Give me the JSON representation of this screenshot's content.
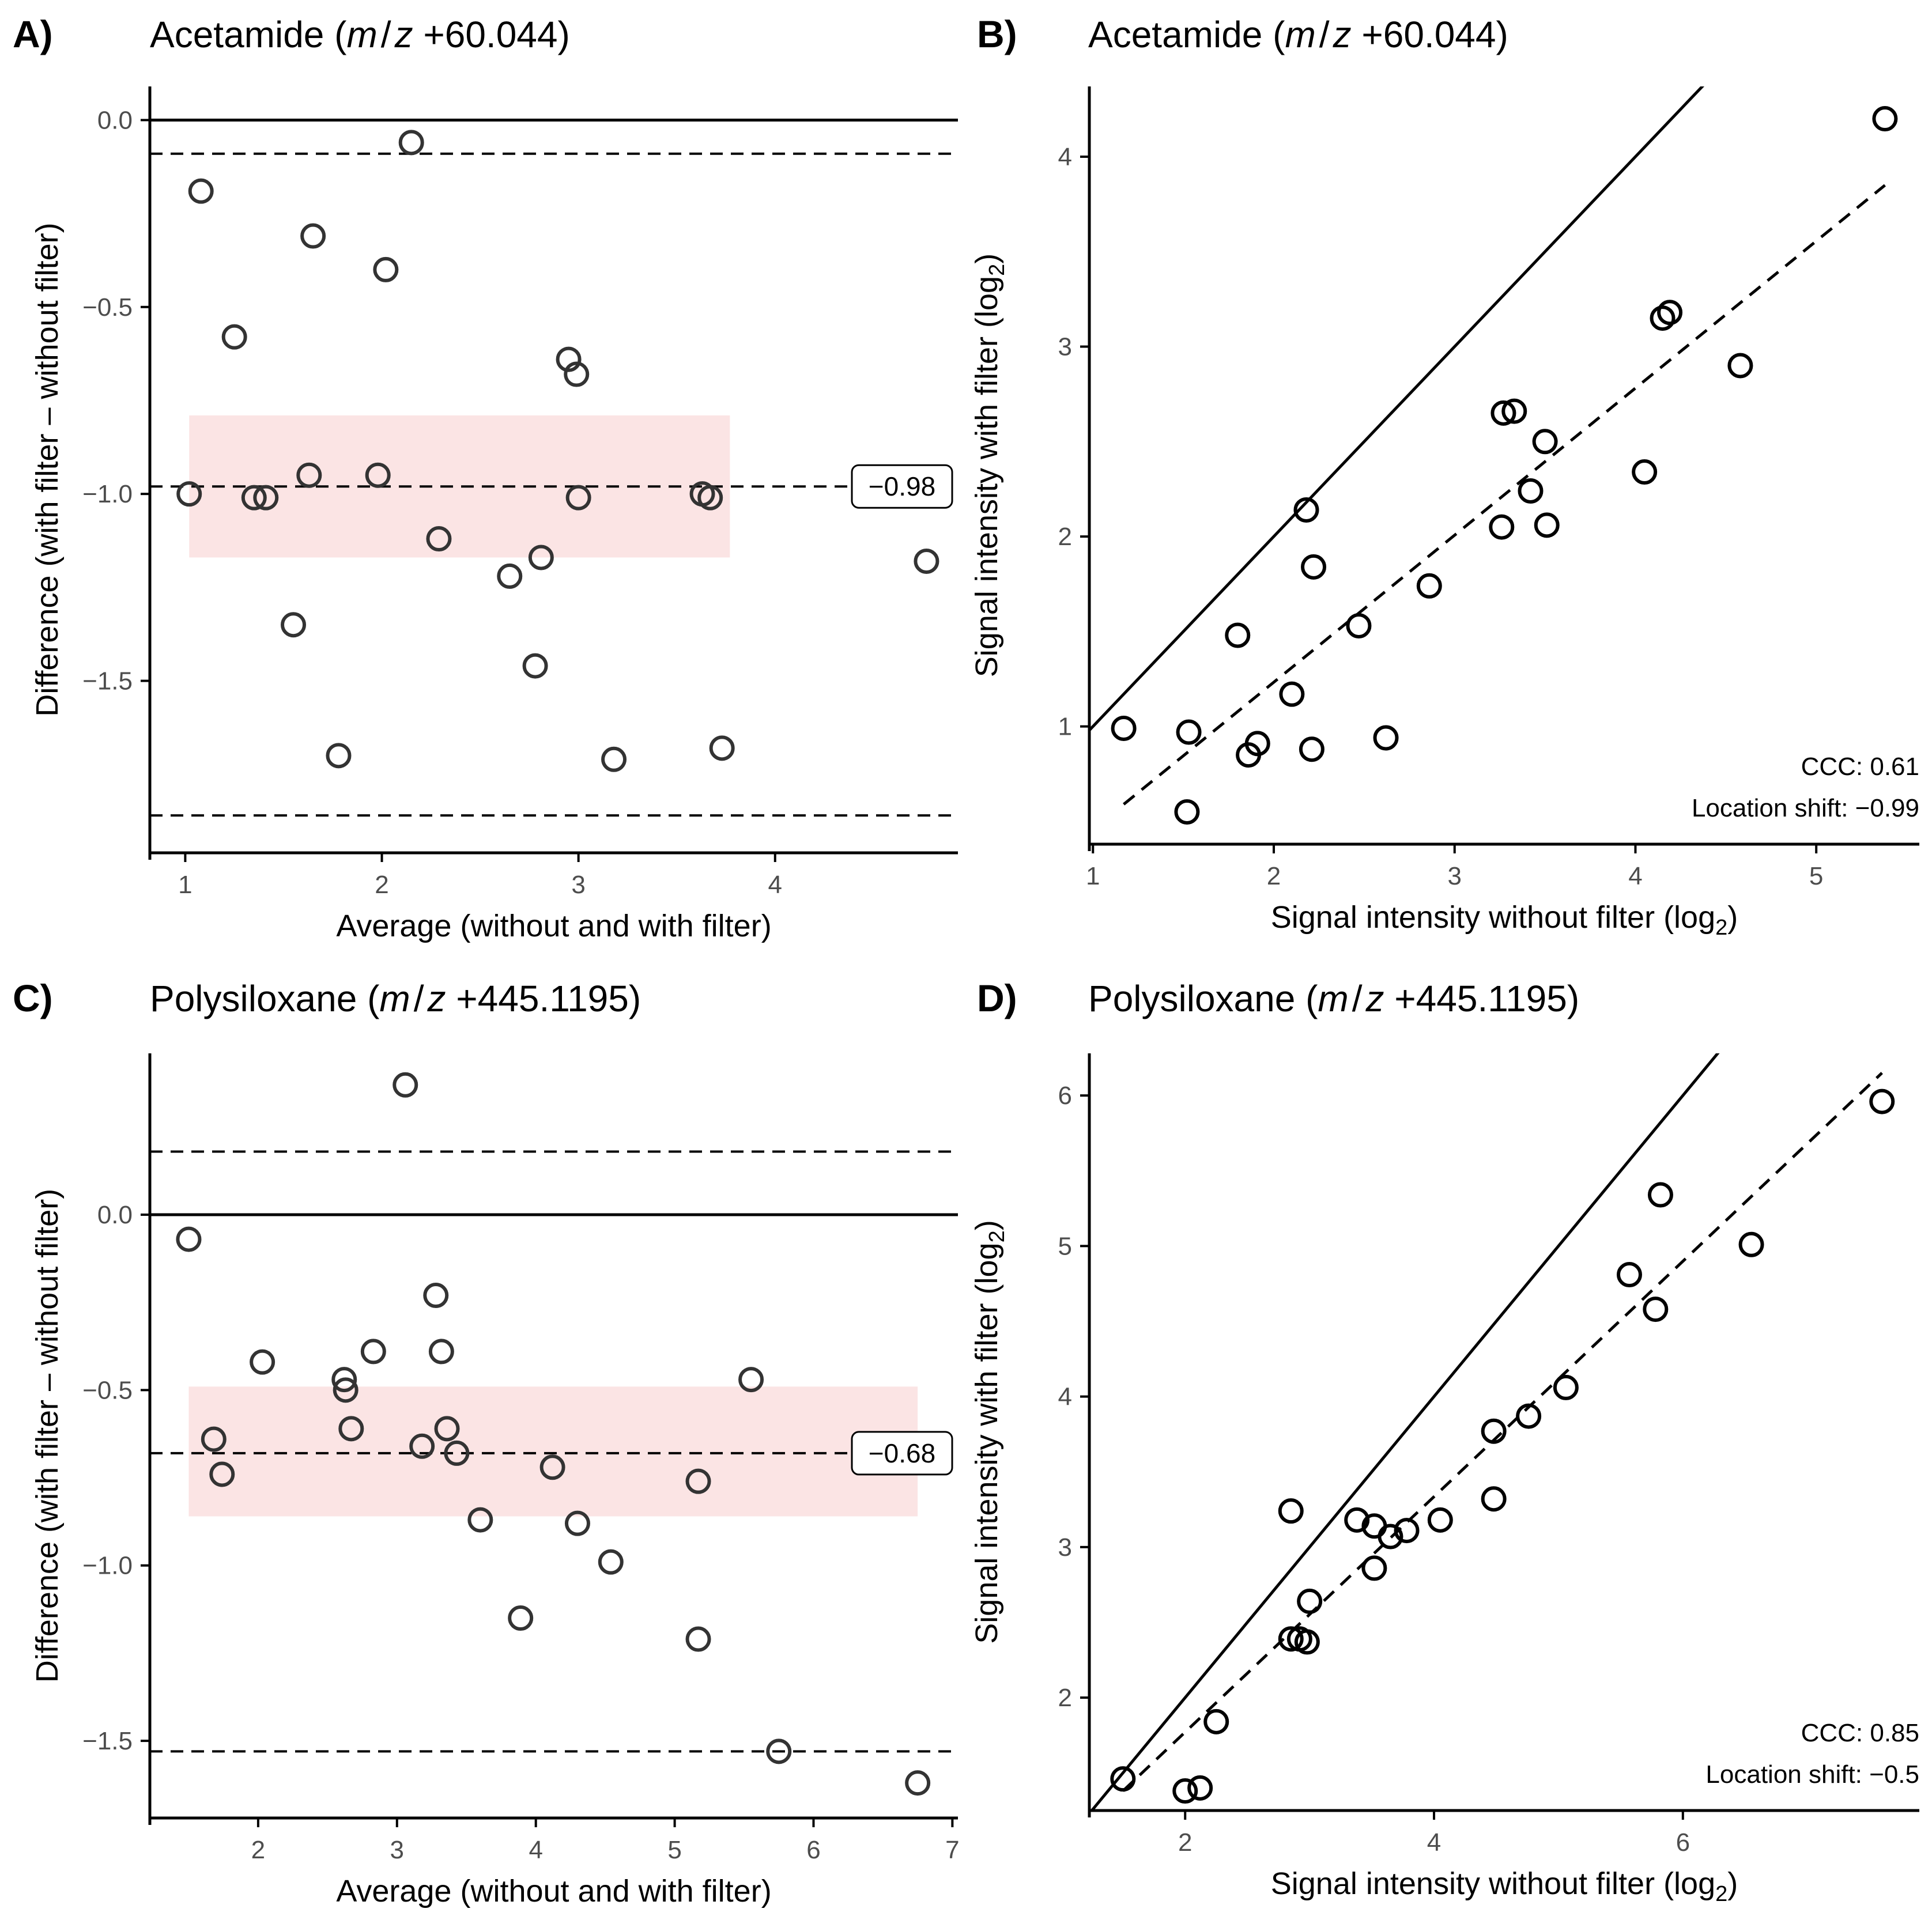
{
  "figure": {
    "colors": {
      "axis": "#000000",
      "point": "#333333",
      "band": "#fbe4e4",
      "tick_text": "#4d4d4d"
    }
  },
  "chart_data": [
    {
      "id": "A",
      "type": "scatter",
      "subtype": "bland-altman",
      "panel_label": "A)",
      "title_name": "Acetamide (",
      "title_mz_m": "m",
      "title_mz_slash": "/",
      "title_mz_z": "z",
      "title_value": " +60.044)",
      "xlabel": "Average (without and with filter)",
      "ylabel": "Difference (with filter – without filter)",
      "xlim": [
        0.82,
        4.93
      ],
      "ylim": [
        -1.96,
        0.09
      ],
      "xticks": [
        1,
        2,
        3,
        4
      ],
      "xtick_labels": [
        "1",
        "2",
        "3",
        "4"
      ],
      "yticks": [
        0.0,
        -0.5,
        -1.0,
        -1.5
      ],
      "ytick_labels": [
        "0.0",
        "−0.5",
        "−1.0",
        "−1.5"
      ],
      "zero_line": 0.0,
      "mean_difference": -0.98,
      "mean_label": "−0.98",
      "limits_of_agreement": [
        -0.09,
        -1.86
      ],
      "band": {
        "y_min": -1.17,
        "y_max": -0.79,
        "x_min": 1.02,
        "x_max": 3.77
      },
      "points": [
        {
          "x": 1.08,
          "y": -0.19
        },
        {
          "x": 1.25,
          "y": -0.58
        },
        {
          "x": 1.02,
          "y": -1.0
        },
        {
          "x": 1.35,
          "y": -1.01
        },
        {
          "x": 1.41,
          "y": -1.01
        },
        {
          "x": 1.55,
          "y": -1.35
        },
        {
          "x": 1.63,
          "y": -0.95
        },
        {
          "x": 1.65,
          "y": -0.31
        },
        {
          "x": 1.78,
          "y": -1.7
        },
        {
          "x": 1.98,
          "y": -0.95
        },
        {
          "x": 2.02,
          "y": -0.4
        },
        {
          "x": 2.15,
          "y": -0.06
        },
        {
          "x": 2.29,
          "y": -1.12
        },
        {
          "x": 2.65,
          "y": -1.22
        },
        {
          "x": 2.78,
          "y": -1.46
        },
        {
          "x": 2.81,
          "y": -1.17
        },
        {
          "x": 2.95,
          "y": -0.64
        },
        {
          "x": 2.99,
          "y": -0.68
        },
        {
          "x": 3.0,
          "y": -1.01
        },
        {
          "x": 3.18,
          "y": -1.71
        },
        {
          "x": 3.63,
          "y": -1.0
        },
        {
          "x": 3.67,
          "y": -1.01
        },
        {
          "x": 3.73,
          "y": -1.68
        },
        {
          "x": 4.77,
          "y": -1.18
        }
      ]
    },
    {
      "id": "B",
      "type": "scatter",
      "subtype": "agreement",
      "panel_label": "B)",
      "title_name": "Acetamide (",
      "title_mz_m": "m",
      "title_mz_slash": "/",
      "title_mz_z": "z",
      "title_value": " +60.044)",
      "xlabel_main": "Signal intensity without filter (log",
      "xlabel_sub": "2",
      "xlabel_end": ")",
      "ylabel_main": "Signal intensity with filter (log",
      "ylabel_sub": "2",
      "ylabel_end": ")",
      "xlim": [
        0.98,
        5.57
      ],
      "ylim": [
        0.38,
        4.37
      ],
      "xticks": [
        1,
        2,
        3,
        4,
        5
      ],
      "xtick_labels": [
        "1",
        "2",
        "3",
        "4",
        "5"
      ],
      "yticks": [
        1,
        2,
        3,
        4
      ],
      "ytick_labels": [
        "1",
        "2",
        "3",
        "4"
      ],
      "identity_line": true,
      "fit_line": {
        "x_start": 1.17,
        "x_end": 5.38,
        "y_start": 0.59,
        "y_end": 3.85
      },
      "ccc_label": "CCC: 0.61",
      "shift_label": "Location shift: −0.99",
      "points": [
        {
          "x": 1.17,
          "y": 0.99
        },
        {
          "x": 1.52,
          "y": 0.55
        },
        {
          "x": 1.53,
          "y": 0.97
        },
        {
          "x": 1.8,
          "y": 1.48
        },
        {
          "x": 1.86,
          "y": 0.85
        },
        {
          "x": 1.91,
          "y": 0.91
        },
        {
          "x": 2.1,
          "y": 1.17
        },
        {
          "x": 2.18,
          "y": 2.14
        },
        {
          "x": 2.21,
          "y": 0.88
        },
        {
          "x": 2.22,
          "y": 1.84
        },
        {
          "x": 2.47,
          "y": 1.53
        },
        {
          "x": 2.62,
          "y": 0.94
        },
        {
          "x": 2.86,
          "y": 1.74
        },
        {
          "x": 3.26,
          "y": 2.05
        },
        {
          "x": 3.27,
          "y": 2.65
        },
        {
          "x": 3.33,
          "y": 2.66
        },
        {
          "x": 3.42,
          "y": 2.24
        },
        {
          "x": 3.5,
          "y": 2.5
        },
        {
          "x": 3.51,
          "y": 2.06
        },
        {
          "x": 4.05,
          "y": 2.34
        },
        {
          "x": 4.15,
          "y": 3.15
        },
        {
          "x": 4.19,
          "y": 3.18
        },
        {
          "x": 4.58,
          "y": 2.9
        },
        {
          "x": 5.38,
          "y": 4.2
        }
      ]
    },
    {
      "id": "C",
      "type": "scatter",
      "subtype": "bland-altman",
      "panel_label": "C)",
      "title_name": "Polysiloxane (",
      "title_mz_m": "m",
      "title_mz_slash": "/",
      "title_mz_z": "z",
      "title_value": " +445.1195)",
      "xlabel": "Average (without and with filter)",
      "ylabel": "Difference (with filter – without filter)",
      "xlim": [
        1.22,
        7.04
      ],
      "ylim": [
        -1.72,
        0.46
      ],
      "xticks": [
        2,
        3,
        4,
        5,
        6,
        7
      ],
      "xtick_labels": [
        "2",
        "3",
        "4",
        "5",
        "6",
        "7"
      ],
      "yticks": [
        0.0,
        -0.5,
        -1.0,
        -1.5
      ],
      "ytick_labels": [
        "0.0",
        "−0.5",
        "−1.0",
        "−1.5"
      ],
      "zero_line": 0.0,
      "mean_difference": -0.68,
      "mean_label": "−0.68",
      "limits_of_agreement": [
        0.18,
        -1.53
      ],
      "band": {
        "y_min": -0.86,
        "y_max": -0.49,
        "x_min": 1.5,
        "x_max": 6.75
      },
      "points": [
        {
          "x": 1.5,
          "y": -0.07
        },
        {
          "x": 1.68,
          "y": -0.64
        },
        {
          "x": 1.74,
          "y": -0.74
        },
        {
          "x": 2.03,
          "y": -0.42
        },
        {
          "x": 2.62,
          "y": -0.47
        },
        {
          "x": 2.63,
          "y": -0.5
        },
        {
          "x": 2.67,
          "y": -0.61
        },
        {
          "x": 2.83,
          "y": -0.39
        },
        {
          "x": 3.06,
          "y": 0.37
        },
        {
          "x": 3.18,
          "y": -0.66
        },
        {
          "x": 3.28,
          "y": -0.23
        },
        {
          "x": 3.32,
          "y": -0.39
        },
        {
          "x": 3.36,
          "y": -0.61
        },
        {
          "x": 3.43,
          "y": -0.68
        },
        {
          "x": 3.6,
          "y": -0.87
        },
        {
          "x": 3.89,
          "y": -1.15
        },
        {
          "x": 4.12,
          "y": -0.72
        },
        {
          "x": 4.3,
          "y": -0.88
        },
        {
          "x": 4.54,
          "y": -0.99
        },
        {
          "x": 5.17,
          "y": -0.76
        },
        {
          "x": 5.17,
          "y": -1.21
        },
        {
          "x": 5.55,
          "y": -0.47
        },
        {
          "x": 5.75,
          "y": -1.53
        },
        {
          "x": 6.75,
          "y": -1.62
        }
      ]
    },
    {
      "id": "D",
      "type": "scatter",
      "subtype": "agreement",
      "panel_label": "D)",
      "title_name": "Polysiloxane (",
      "title_mz_m": "m",
      "title_mz_slash": "/",
      "title_mz_z": "z",
      "title_value": " +445.1195)",
      "xlabel_main": "Signal intensity without filter (log",
      "xlabel_sub": "2",
      "xlabel_end": ")",
      "ylabel_main": "Signal intensity with filter (log",
      "ylabel_sub": "2",
      "ylabel_end": ")",
      "xlim": [
        1.23,
        7.9
      ],
      "ylim": [
        1.25,
        6.28
      ],
      "xticks": [
        2,
        4,
        6
      ],
      "xtick_labels": [
        "2",
        "4",
        "6"
      ],
      "yticks": [
        2,
        3,
        4,
        5,
        6
      ],
      "ytick_labels": [
        "2",
        "3",
        "4",
        "5",
        "6"
      ],
      "identity_line": true,
      "fit_line": {
        "x_start": 1.5,
        "x_end": 7.6,
        "y_start": 1.38,
        "y_end": 6.15
      },
      "ccc_label": "CCC: 0.85",
      "shift_label": "Location shift: −0.5",
      "points": [
        {
          "x": 1.5,
          "y": 1.46
        },
        {
          "x": 2.0,
          "y": 1.38
        },
        {
          "x": 2.12,
          "y": 1.4
        },
        {
          "x": 2.25,
          "y": 1.84
        },
        {
          "x": 2.85,
          "y": 2.39
        },
        {
          "x": 2.85,
          "y": 3.24
        },
        {
          "x": 2.92,
          "y": 2.39
        },
        {
          "x": 2.98,
          "y": 2.37
        },
        {
          "x": 3.0,
          "y": 2.64
        },
        {
          "x": 3.38,
          "y": 3.18
        },
        {
          "x": 3.52,
          "y": 2.86
        },
        {
          "x": 3.52,
          "y": 3.14
        },
        {
          "x": 3.65,
          "y": 3.07
        },
        {
          "x": 3.78,
          "y": 3.11
        },
        {
          "x": 4.05,
          "y": 3.18
        },
        {
          "x": 4.48,
          "y": 3.32
        },
        {
          "x": 4.48,
          "y": 3.77
        },
        {
          "x": 4.76,
          "y": 3.87
        },
        {
          "x": 5.06,
          "y": 4.06
        },
        {
          "x": 5.57,
          "y": 4.81
        },
        {
          "x": 5.78,
          "y": 4.58
        },
        {
          "x": 5.82,
          "y": 5.34
        },
        {
          "x": 6.55,
          "y": 5.01
        },
        {
          "x": 7.6,
          "y": 5.96
        }
      ]
    }
  ]
}
